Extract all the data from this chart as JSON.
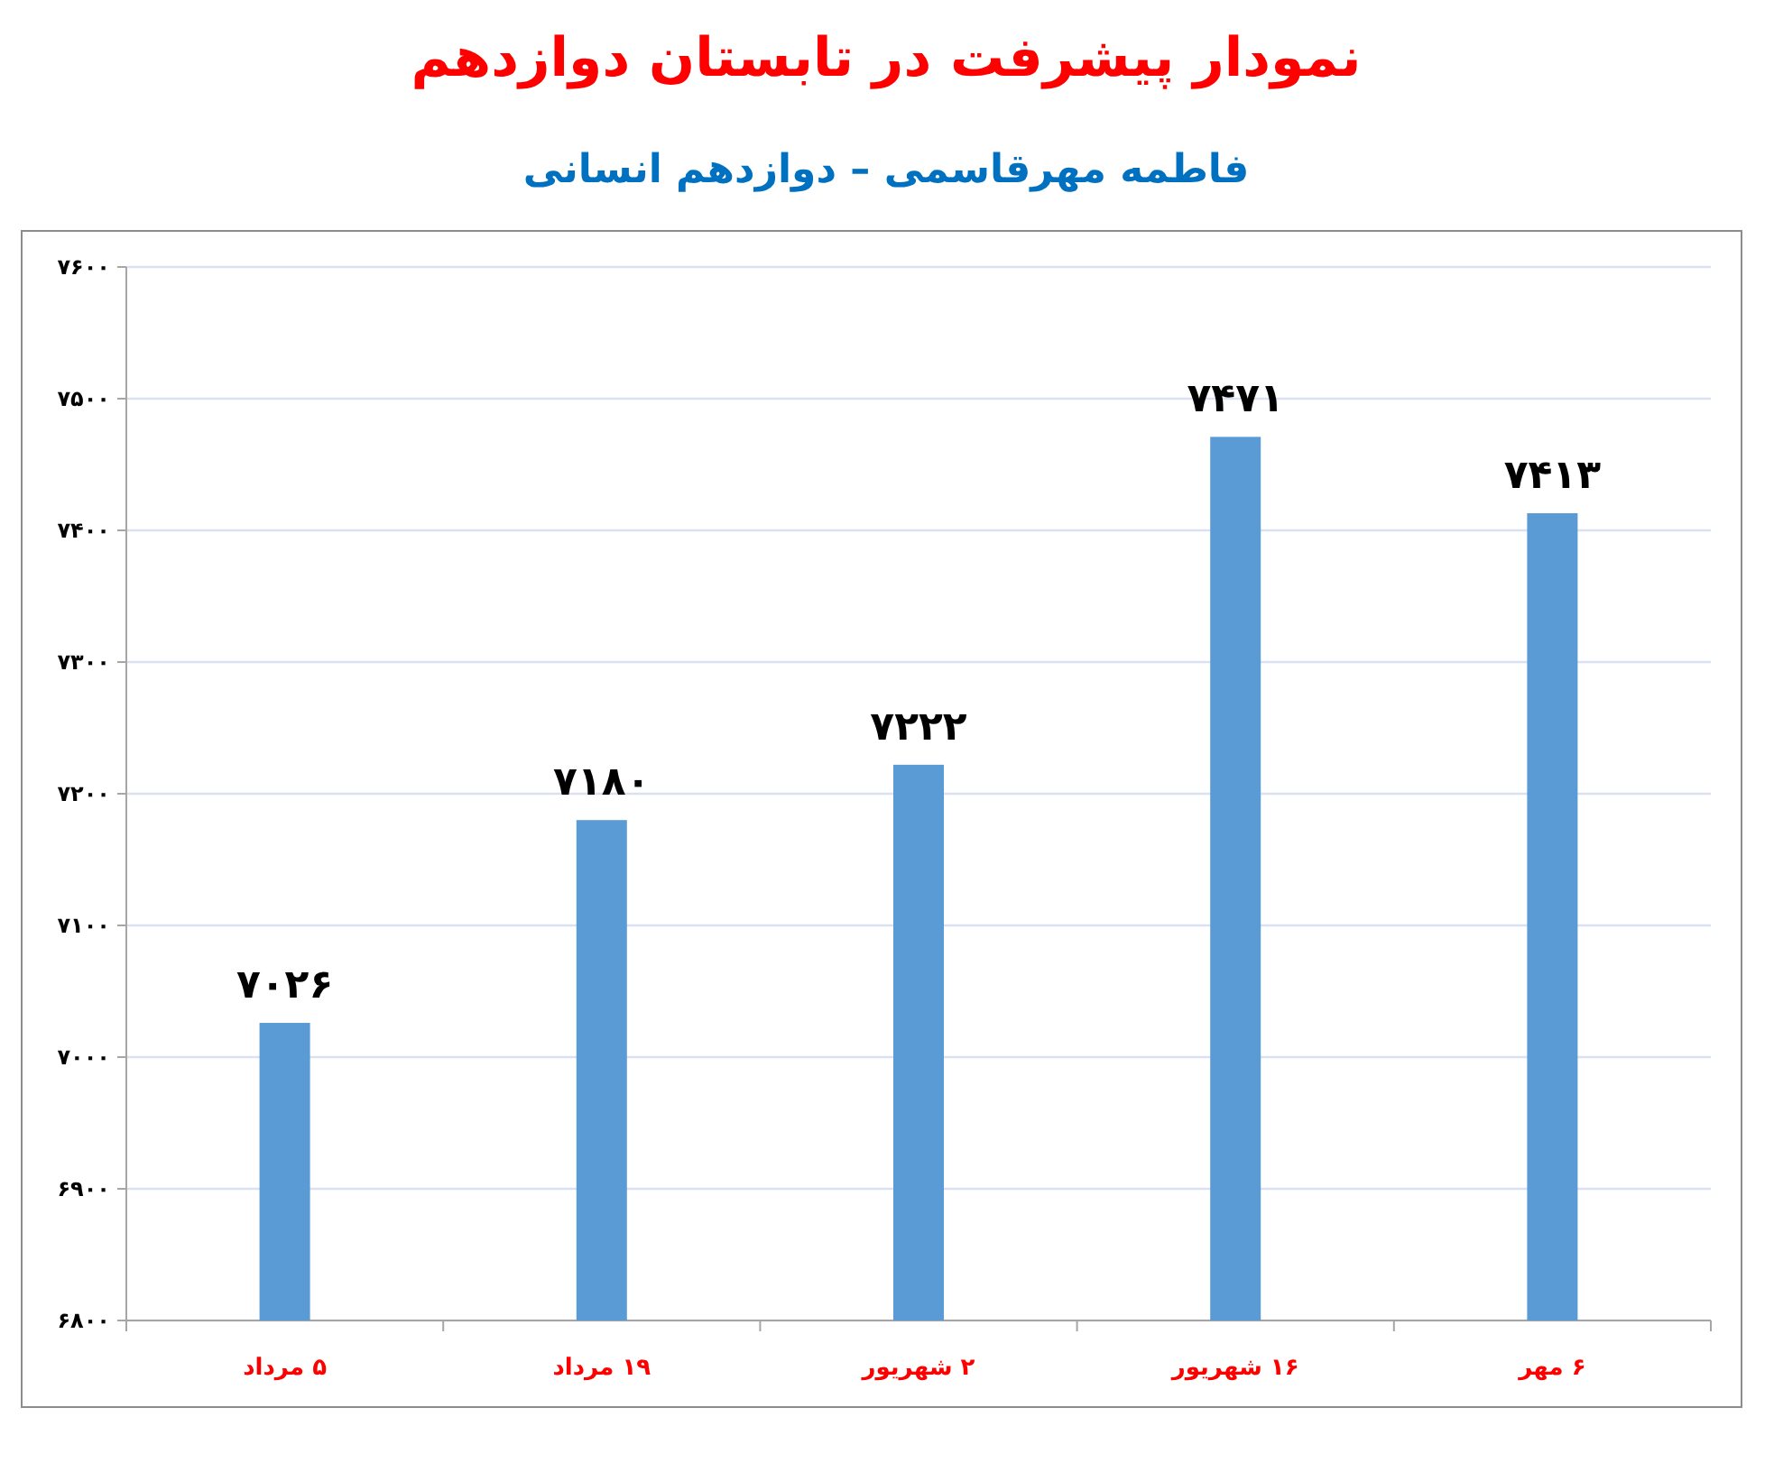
{
  "chart_data": {
    "type": "bar",
    "title": "نمودار پیشرفت در تابستان دوازدهم",
    "subtitle": "فاطمه مهرقاسمی – دوازدهم انسانی",
    "categories": [
      "۵ مرداد",
      "۱۹ مرداد",
      "۲ شهریور",
      "۱۶ شهریور",
      "۶ مهر"
    ],
    "values": [
      7026,
      7180,
      7222,
      7471,
      7413
    ],
    "value_labels": [
      "۷۰۲۶",
      "۷۱۸۰",
      "۷۲۲۲",
      "۷۴۷۱",
      "۷۴۱۳"
    ],
    "color": "#5b9bd5",
    "ylim": [
      6800,
      7600
    ],
    "yticks": [
      {
        "value": 6800,
        "label": "۶۸۰۰"
      },
      {
        "value": 6900,
        "label": "۶۹۰۰"
      },
      {
        "value": 7000,
        "label": "۷۰۰۰"
      },
      {
        "value": 7100,
        "label": "۷۱۰۰"
      },
      {
        "value": 7200,
        "label": "۷۲۰۰"
      },
      {
        "value": 7300,
        "label": "۷۳۰۰"
      },
      {
        "value": 7400,
        "label": "۷۴۰۰"
      },
      {
        "value": 7500,
        "label": "۷۵۰۰"
      },
      {
        "value": 7600,
        "label": "۷۶۰۰"
      }
    ],
    "grid": "y"
  }
}
